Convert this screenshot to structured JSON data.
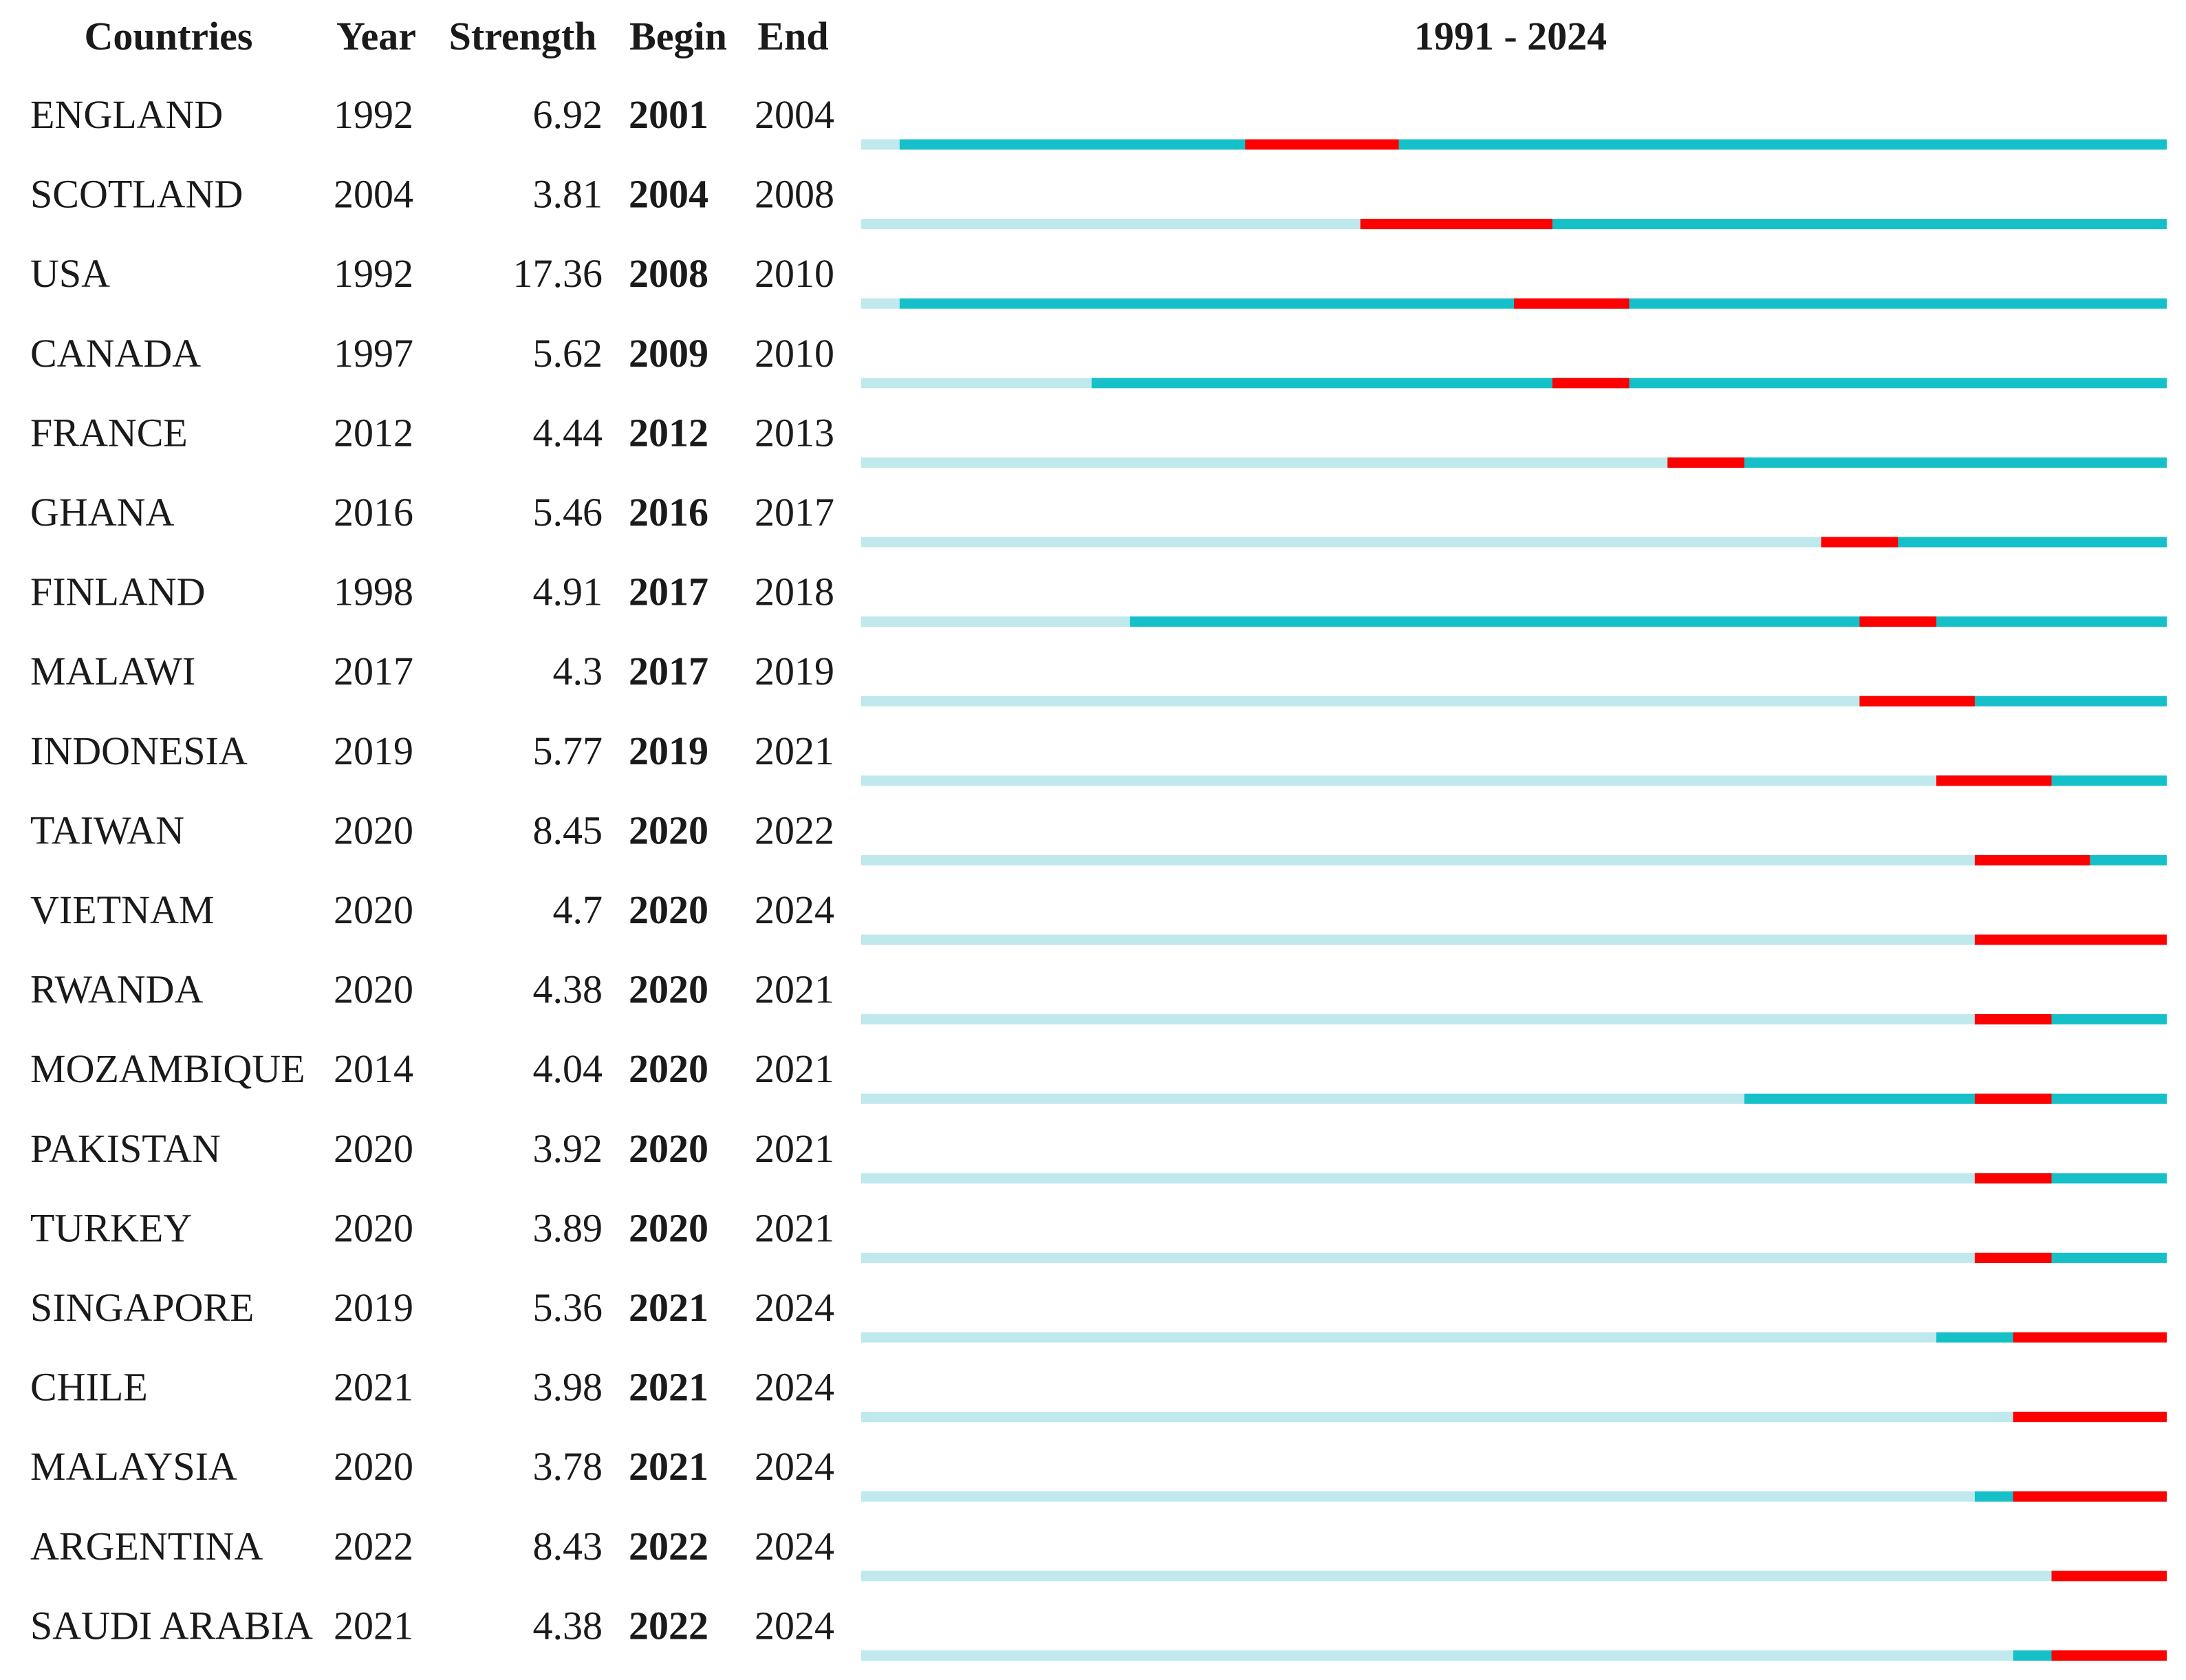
{
  "chart_data": {
    "type": "table",
    "timeline_label": "1991 - 2024",
    "timeline_start": 1991,
    "timeline_end": 2024,
    "columns": [
      "Countries",
      "Year",
      "Strength",
      "Begin",
      "End"
    ],
    "colors": {
      "before": "#bfe9ec",
      "active": "#16c0c8",
      "burst": "#ff0000"
    },
    "rows": [
      {
        "country": "ENGLAND",
        "year": "1992",
        "strength": "6.92",
        "begin": "2001",
        "end": "2004"
      },
      {
        "country": "SCOTLAND",
        "year": "2004",
        "strength": "3.81",
        "begin": "2004",
        "end": "2008"
      },
      {
        "country": "USA",
        "year": "1992",
        "strength": "17.36",
        "begin": "2008",
        "end": "2010"
      },
      {
        "country": "CANADA",
        "year": "1997",
        "strength": "5.62",
        "begin": "2009",
        "end": "2010"
      },
      {
        "country": "FRANCE",
        "year": "2012",
        "strength": "4.44",
        "begin": "2012",
        "end": "2013"
      },
      {
        "country": "GHANA",
        "year": "2016",
        "strength": "5.46",
        "begin": "2016",
        "end": "2017"
      },
      {
        "country": "FINLAND",
        "year": "1998",
        "strength": "4.91",
        "begin": "2017",
        "end": "2018"
      },
      {
        "country": "MALAWI",
        "year": "2017",
        "strength": "4.3",
        "begin": "2017",
        "end": "2019"
      },
      {
        "country": "INDONESIA",
        "year": "2019",
        "strength": "5.77",
        "begin": "2019",
        "end": "2021"
      },
      {
        "country": "TAIWAN",
        "year": "2020",
        "strength": "8.45",
        "begin": "2020",
        "end": "2022"
      },
      {
        "country": "VIETNAM",
        "year": "2020",
        "strength": "4.7",
        "begin": "2020",
        "end": "2024"
      },
      {
        "country": "RWANDA",
        "year": "2020",
        "strength": "4.38",
        "begin": "2020",
        "end": "2021"
      },
      {
        "country": "MOZAMBIQUE",
        "year": "2014",
        "strength": "4.04",
        "begin": "2020",
        "end": "2021"
      },
      {
        "country": "PAKISTAN",
        "year": "2020",
        "strength": "3.92",
        "begin": "2020",
        "end": "2021"
      },
      {
        "country": "TURKEY",
        "year": "2020",
        "strength": "3.89",
        "begin": "2020",
        "end": "2021"
      },
      {
        "country": "SINGAPORE",
        "year": "2019",
        "strength": "5.36",
        "begin": "2021",
        "end": "2024"
      },
      {
        "country": "CHILE",
        "year": "2021",
        "strength": "3.98",
        "begin": "2021",
        "end": "2024"
      },
      {
        "country": "MALAYSIA",
        "year": "2020",
        "strength": "3.78",
        "begin": "2021",
        "end": "2024"
      },
      {
        "country": "ARGENTINA",
        "year": "2022",
        "strength": "8.43",
        "begin": "2022",
        "end": "2024"
      },
      {
        "country": "SAUDI ARABIA",
        "year": "2021",
        "strength": "4.38",
        "begin": "2022",
        "end": "2024"
      }
    ]
  }
}
